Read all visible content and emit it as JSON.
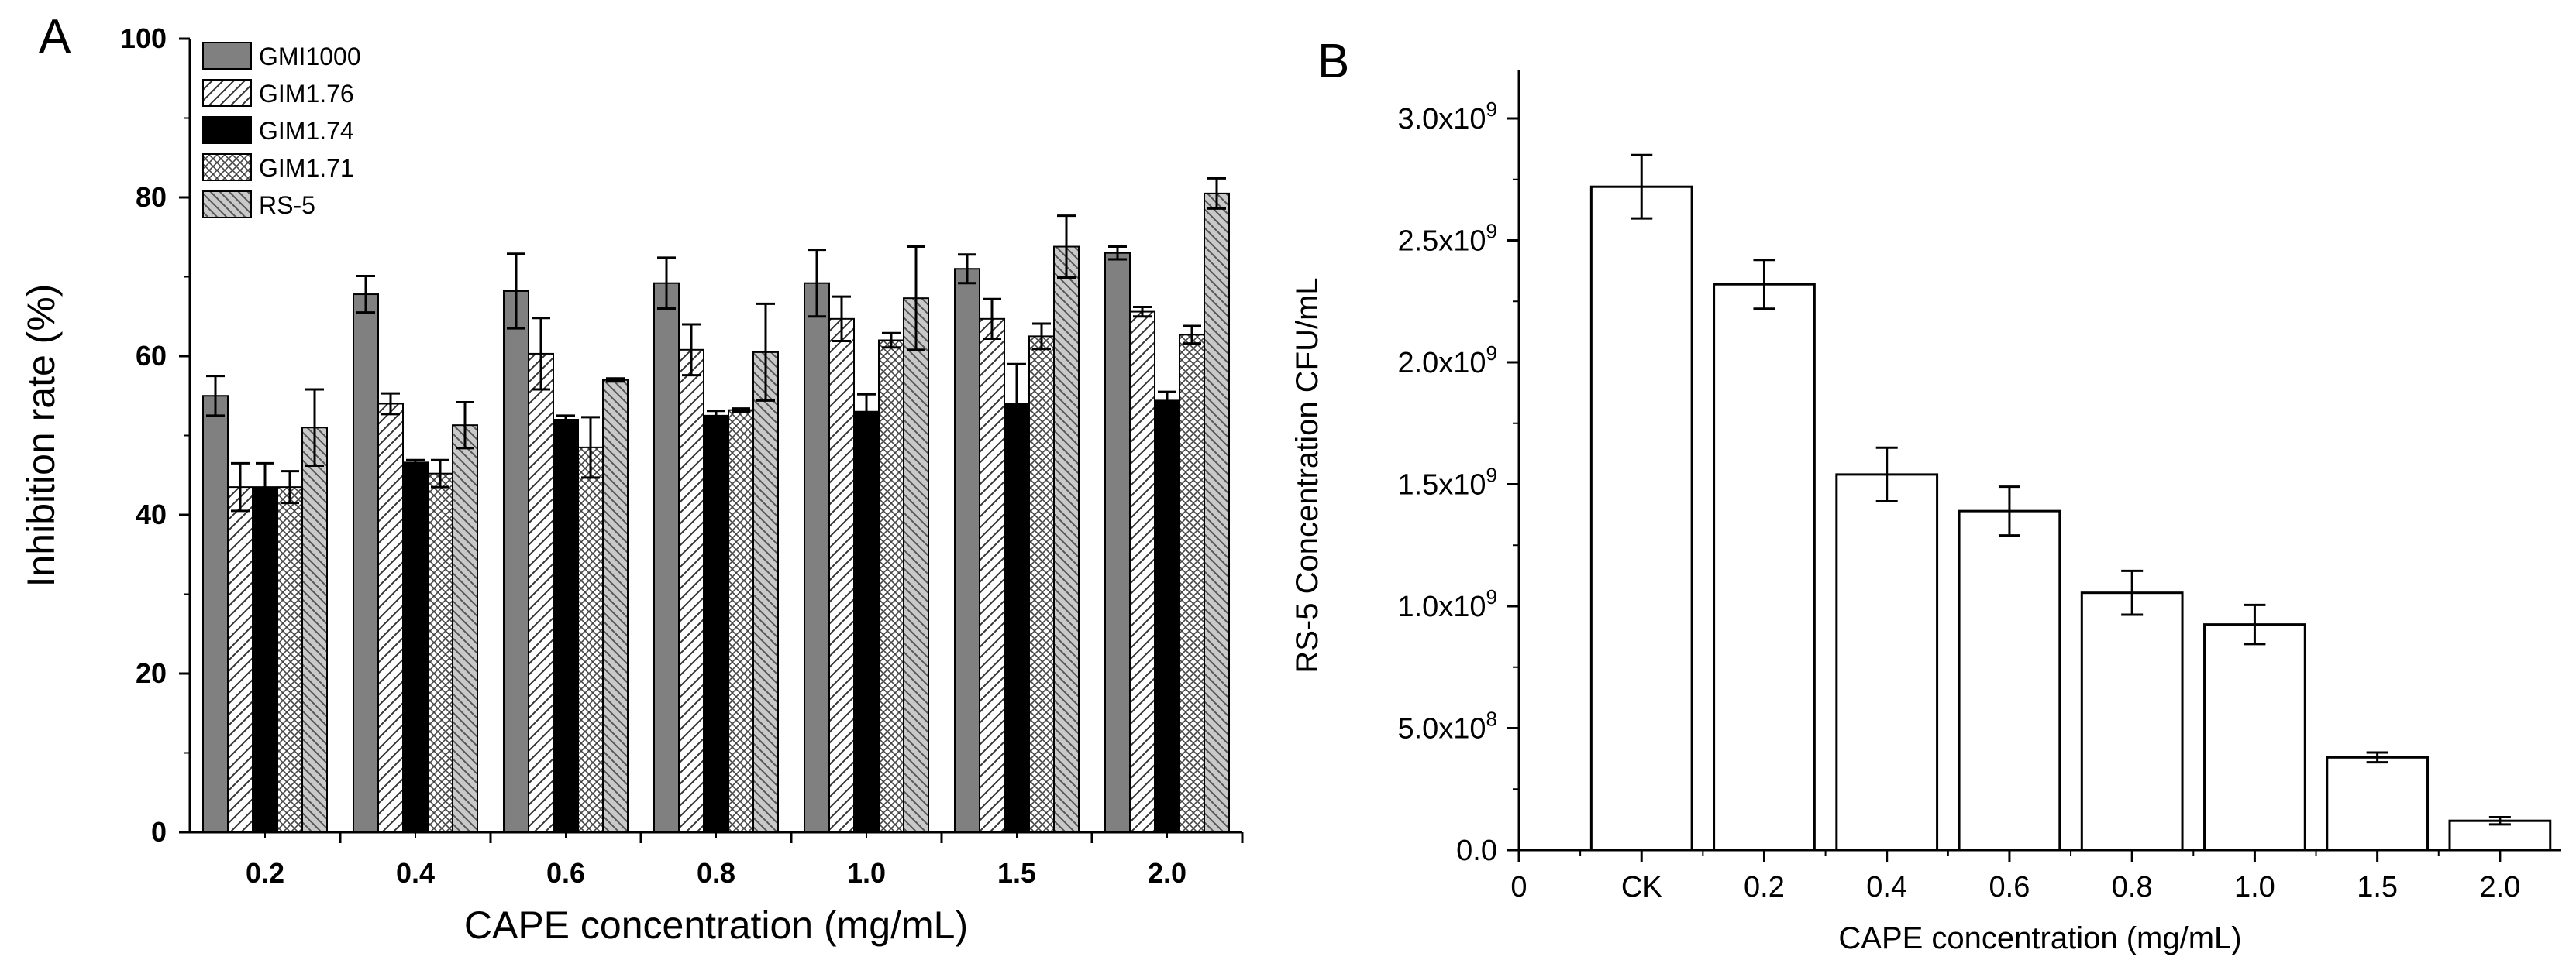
{
  "chart_data": [
    {
      "panel": "A",
      "type": "bar",
      "xlabel": "CAPE concentration (mg/mL)",
      "ylabel": "Inhibition rate (%)",
      "ylim": [
        0,
        100
      ],
      "yticks": [
        "0",
        "20",
        "40",
        "60",
        "80",
        "100"
      ],
      "categories": [
        "0.2",
        "0.4",
        "0.6",
        "0.8",
        "1.0",
        "1.5",
        "2.0"
      ],
      "legend_position": "top-left",
      "series": [
        {
          "name": "GMI1000",
          "pattern": "gray",
          "values": [
            55.0,
            67.8,
            68.2,
            69.2,
            69.2,
            71.0,
            73.0
          ],
          "errors": [
            2.5,
            2.3,
            4.7,
            3.2,
            4.2,
            1.8,
            0.8
          ]
        },
        {
          "name": "GIM1.76",
          "pattern": "hatch",
          "values": [
            43.5,
            54.0,
            60.3,
            60.8,
            64.7,
            64.7,
            65.6
          ],
          "errors": [
            3.0,
            1.3,
            4.5,
            3.2,
            2.8,
            2.5,
            0.6
          ]
        },
        {
          "name": "GIM1.74",
          "pattern": "black",
          "values": [
            43.5,
            46.6,
            52.0,
            52.5,
            53.0,
            54.0,
            54.4
          ],
          "errors": [
            3.0,
            0.3,
            0.5,
            0.6,
            2.2,
            5.0,
            1.1
          ]
        },
        {
          "name": "GIM1.71",
          "pattern": "crosshatch",
          "values": [
            43.5,
            45.2,
            48.5,
            53.2,
            62.0,
            62.5,
            62.7
          ],
          "errors": [
            2.0,
            1.7,
            3.8,
            0.2,
            0.9,
            1.6,
            1.1
          ]
        },
        {
          "name": "RS-5",
          "pattern": "backhatch",
          "values": [
            51.0,
            51.3,
            57.0,
            60.5,
            67.3,
            73.8,
            80.5
          ],
          "errors": [
            4.8,
            2.9,
            0.2,
            6.1,
            6.5,
            3.9,
            1.9
          ]
        }
      ]
    },
    {
      "panel": "B",
      "type": "bar",
      "xlabel": "CAPE concentration (mg/mL)",
      "ylabel": "RS-5 Concentration CFU/mL",
      "xticks": [
        "0",
        "CK",
        "0.2",
        "0.4",
        "0.6",
        "0.8",
        "1.0",
        "1.5",
        "2.0"
      ],
      "categories": [
        "CK",
        "0.2",
        "0.4",
        "0.6",
        "0.8",
        "1.0",
        "1.5",
        "2.0"
      ],
      "values": [
        2720000000.0,
        2320000000.0,
        1540000000.0,
        1390000000.0,
        1055000000.0,
        925000000.0,
        380000000.0,
        120000000.0
      ],
      "errors": [
        130000000.0,
        100000000.0,
        110000000.0,
        100000000.0,
        90000000.0,
        80000000.0,
        20000000.0,
        15000000.0
      ],
      "ylim": [
        0,
        3200000000.0
      ],
      "ytick_values": [
        0,
        500000000.0,
        1000000000.0,
        1500000000.0,
        2000000000.0,
        2500000000.0,
        3000000000.0
      ],
      "ytick_labels": [
        {
          "mantissa": "0.0",
          "exponent": ""
        },
        {
          "mantissa": "5.0x10",
          "exponent": "8"
        },
        {
          "mantissa": "1.0x10",
          "exponent": "9"
        },
        {
          "mantissa": "1.5x10",
          "exponent": "9"
        },
        {
          "mantissa": "2.0x10",
          "exponent": "9"
        },
        {
          "mantissa": "2.5x10",
          "exponent": "9"
        },
        {
          "mantissa": "3.0x10",
          "exponent": "9"
        }
      ]
    }
  ],
  "labels": {
    "panel_a": "A",
    "panel_b": "B"
  }
}
